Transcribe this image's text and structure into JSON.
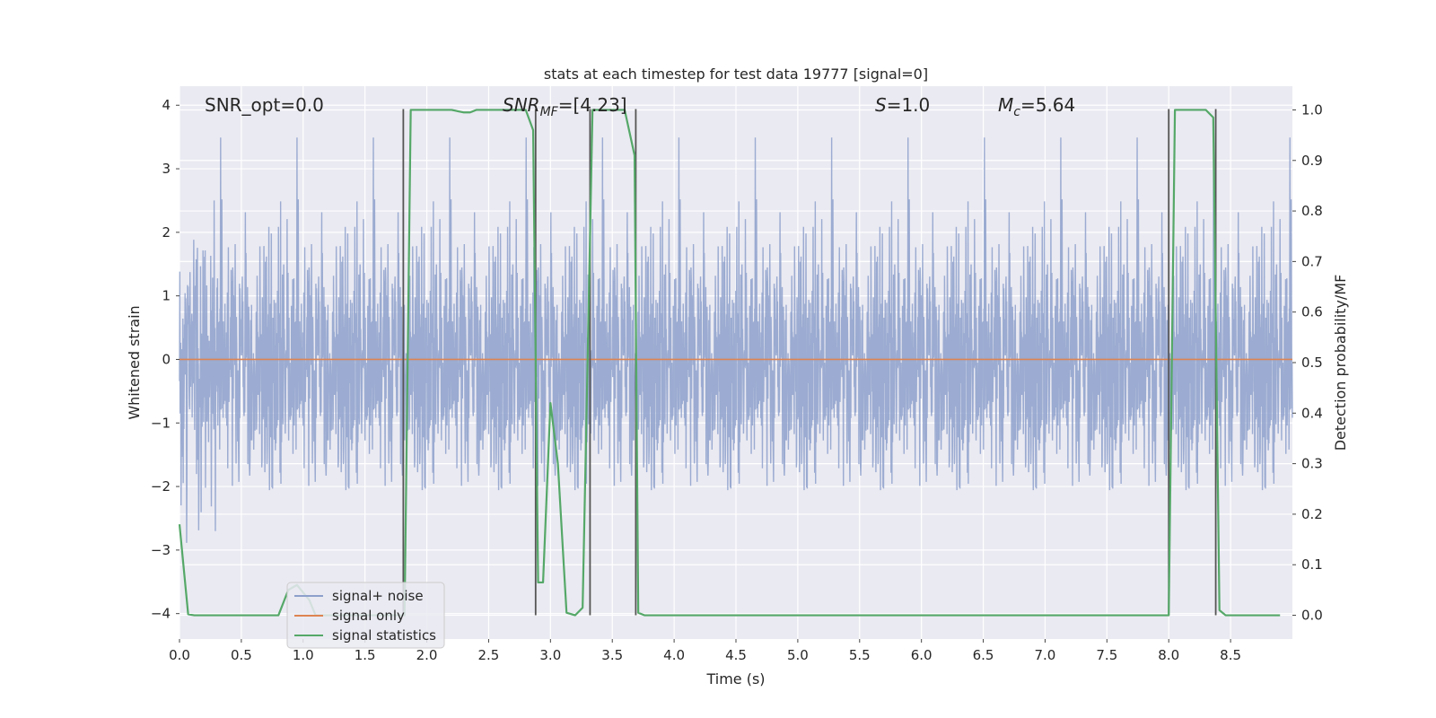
{
  "chart_data": {
    "type": "line",
    "title": "stats at each timestep for test data 19777 [signal=0]",
    "xlabel": "Time (s)",
    "ylabel": "Whitened strain",
    "y2label": "Detection probability/MF",
    "xlim": [
      0.0,
      9.0
    ],
    "ylim": [
      -4.4,
      4.3
    ],
    "y2lim": [
      -0.047,
      1.047
    ],
    "xticks": [
      "0.0",
      "0.5",
      "1.0",
      "1.5",
      "2.0",
      "2.5",
      "3.0",
      "3.5",
      "4.0",
      "4.5",
      "5.0",
      "5.5",
      "6.0",
      "6.5",
      "7.0",
      "7.5",
      "8.0",
      "8.5"
    ],
    "yticks": [
      "4",
      "3",
      "2",
      "1",
      "0",
      "−1",
      "−2",
      "−3",
      "−4"
    ],
    "y2ticks": [
      "1.0",
      "0.9",
      "0.8",
      "0.7",
      "0.6",
      "0.5",
      "0.4",
      "0.3",
      "0.2",
      "0.1",
      "0.0"
    ],
    "grid": true,
    "legend_placement": "lower-left",
    "annotations": {
      "snr_opt": "SNR_opt=0.0",
      "snr_mf": "SNR_MF=[4.23]",
      "s": "S=1.0",
      "mc": "M_c=5.64"
    },
    "series": [
      {
        "name": "signal+ noise",
        "color": "#8da0cb",
        "kind": "noise",
        "amplitude_range": [
          -3.9,
          3.9
        ],
        "description_values": "dense whitened noise between about -3.9 and 3.9"
      },
      {
        "name": "signal only",
        "color": "#dd8452",
        "x": [
          0.0,
          9.0
        ],
        "y": [
          0.0,
          0.0
        ]
      },
      {
        "name": "signal statistics",
        "color": "#55a868",
        "axis": "right",
        "x": [
          0.0,
          0.07,
          0.12,
          0.8,
          0.88,
          0.95,
          1.05,
          1.1,
          1.5,
          1.82,
          1.87,
          2.2,
          2.3,
          2.35,
          2.4,
          2.5,
          2.8,
          2.86,
          2.9,
          2.94,
          3.0,
          3.06,
          3.13,
          3.2,
          3.26,
          3.3,
          3.34,
          3.38,
          3.45,
          3.6,
          3.68,
          3.71,
          3.76,
          4.0,
          8.0,
          8.05,
          8.1,
          8.3,
          8.36,
          8.41,
          8.46,
          8.9
        ],
        "y": [
          0.18,
          0.002,
          0.0,
          0.0,
          0.05,
          0.06,
          0.03,
          0.0,
          0.0,
          0.0,
          1.0,
          1.0,
          0.995,
          0.995,
          1.0,
          1.0,
          1.0,
          0.96,
          0.065,
          0.065,
          0.42,
          0.3,
          0.005,
          0.0,
          0.015,
          0.5,
          1.0,
          1.0,
          1.0,
          1.0,
          0.91,
          0.005,
          0.0,
          0.0,
          0.0,
          1.0,
          1.0,
          1.0,
          0.985,
          0.01,
          0.0,
          0.0
        ]
      }
    ],
    "vertical_markers": {
      "color": "#555555",
      "x": [
        1.81,
        2.88,
        3.32,
        3.69,
        8.0,
        8.38
      ]
    }
  }
}
